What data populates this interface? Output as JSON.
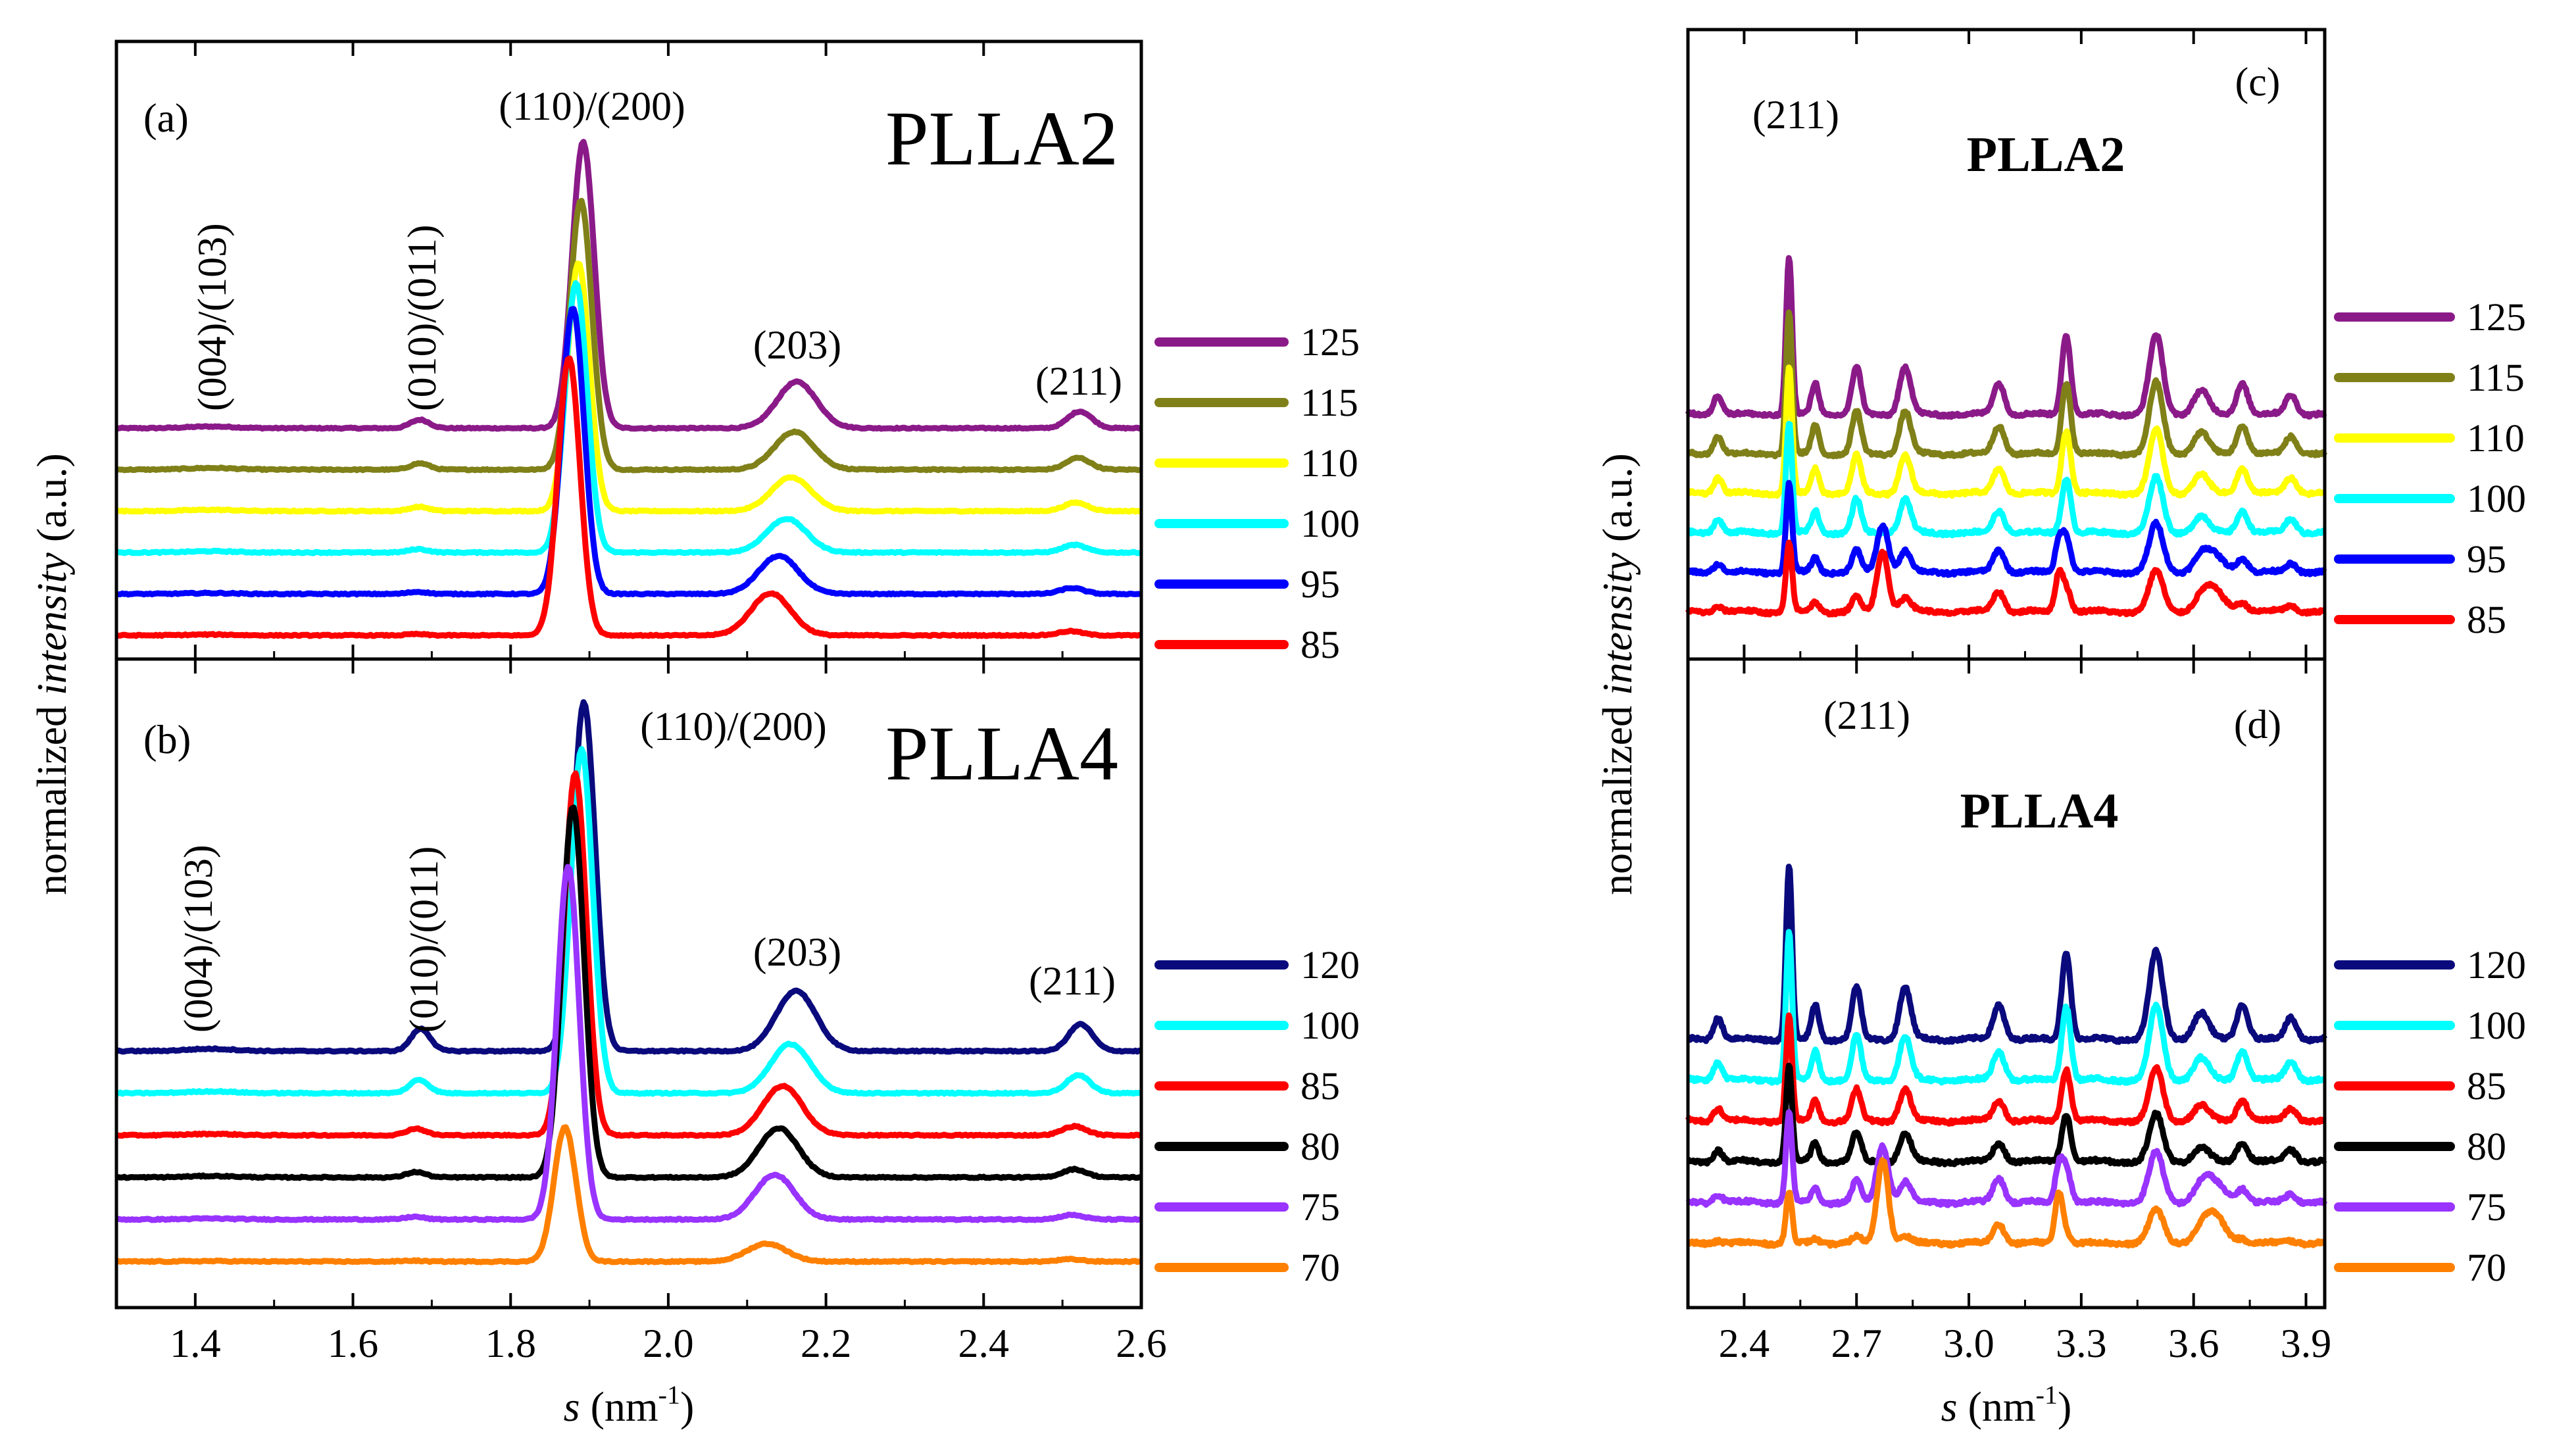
{
  "chart_data": [
    {
      "panel": "(a)",
      "type": "line",
      "sample": "PLLA2",
      "xlim": [
        1.3,
        2.6
      ],
      "x_ticks": [
        "1.4",
        "1.6",
        "1.8",
        "2.0",
        "2.2",
        "2.4",
        "2.6"
      ],
      "xlabel_var": "s",
      "xlabel_unit": "(nm",
      "xlabel_exp": "-1",
      "xlabel_close": ")",
      "ylabel_pre": "normalized ",
      "ylabel_it": "intensity",
      "ylabel_post": " (a.u.)",
      "peaks": [
        {
          "label": "(004)/(103)",
          "x": 1.42
        },
        {
          "label": "(010)/(011)",
          "x": 1.685
        },
        {
          "label": "(110)/(200)",
          "x": 1.89
        },
        {
          "label": "(203)",
          "x": 2.16
        },
        {
          "label": "(211)",
          "x": 2.52
        }
      ],
      "series": [
        {
          "name": "125",
          "color": "#8B1A89",
          "offset": 5,
          "peaks": [
            [
              1.42,
              0.04,
              0.03
            ],
            [
              1.685,
              0.2,
              0.012
            ],
            [
              1.892,
              6.8,
              0.014
            ],
            [
              2.163,
              1.1,
              0.025
            ],
            [
              2.522,
              0.4,
              0.015
            ]
          ]
        },
        {
          "name": "115",
          "color": "#808019",
          "offset": 4,
          "peaks": [
            [
              1.42,
              0.04,
              0.03
            ],
            [
              1.685,
              0.15,
              0.012
            ],
            [
              1.889,
              6.4,
              0.014
            ],
            [
              2.16,
              0.9,
              0.025
            ],
            [
              2.52,
              0.28,
              0.015
            ]
          ]
        },
        {
          "name": "110",
          "color": "#FFFF00",
          "offset": 3,
          "peaks": [
            [
              1.42,
              0.03,
              0.03
            ],
            [
              1.684,
              0.1,
              0.012
            ],
            [
              1.886,
              5.9,
              0.014
            ],
            [
              2.156,
              0.8,
              0.025
            ],
            [
              2.517,
              0.2,
              0.015
            ]
          ]
        },
        {
          "name": "100",
          "color": "#00FFFF",
          "offset": 2,
          "peaks": [
            [
              1.42,
              0.03,
              0.03
            ],
            [
              1.683,
              0.08,
              0.012
            ],
            [
              1.883,
              6.4,
              0.014
            ],
            [
              2.15,
              0.8,
              0.025
            ],
            [
              2.515,
              0.18,
              0.015
            ]
          ]
        },
        {
          "name": "95",
          "color": "#0000FF",
          "offset": 1,
          "peaks": [
            [
              1.42,
              0.02,
              0.03
            ],
            [
              1.682,
              0.05,
              0.012
            ],
            [
              1.879,
              6.8,
              0.014
            ],
            [
              2.14,
              0.9,
              0.025
            ],
            [
              2.512,
              0.14,
              0.015
            ]
          ]
        },
        {
          "name": "85",
          "color": "#FF0000",
          "offset": 0,
          "peaks": [
            [
              1.42,
              0.02,
              0.03
            ],
            [
              1.68,
              0.03,
              0.012
            ],
            [
              1.874,
              6.6,
              0.014
            ],
            [
              2.13,
              1.0,
              0.025
            ],
            [
              2.51,
              0.1,
              0.015
            ]
          ]
        }
      ]
    },
    {
      "panel": "(b)",
      "type": "line",
      "sample": "PLLA4",
      "xlim": [
        1.3,
        2.6
      ],
      "x_ticks": [
        "1.4",
        "1.6",
        "1.8",
        "2.0",
        "2.2",
        "2.4",
        "2.6"
      ],
      "peaks": [
        {
          "label": "(004)/(103)",
          "x": 1.42
        },
        {
          "label": "(010)/(011)",
          "x": 1.685
        },
        {
          "label": "(110)/(200)",
          "x": 1.89
        },
        {
          "label": "(203)",
          "x": 2.16
        },
        {
          "label": "(211)",
          "x": 2.52
        }
      ],
      "series": [
        {
          "name": "120",
          "color": "#0A0A7D",
          "offset": 5,
          "peaks": [
            [
              1.42,
              0.05,
              0.03
            ],
            [
              1.686,
              0.5,
              0.012
            ],
            [
              1.893,
              7.8,
              0.014
            ],
            [
              2.162,
              1.35,
              0.025
            ],
            [
              2.523,
              0.6,
              0.015
            ]
          ]
        },
        {
          "name": "100",
          "color": "#00FFFF",
          "offset": 4,
          "peaks": [
            [
              1.42,
              0.04,
              0.03
            ],
            [
              1.684,
              0.3,
              0.012
            ],
            [
              1.89,
              7.7,
              0.014
            ],
            [
              2.155,
              1.1,
              0.025
            ],
            [
              2.52,
              0.4,
              0.015
            ]
          ]
        },
        {
          "name": "85",
          "color": "#FF0000",
          "offset": 3,
          "peaks": [
            [
              1.42,
              0.03,
              0.03
            ],
            [
              1.68,
              0.15,
              0.012
            ],
            [
              1.882,
              8.1,
              0.014
            ],
            [
              2.145,
              1.1,
              0.025
            ],
            [
              2.515,
              0.2,
              0.015
            ]
          ]
        },
        {
          "name": "80",
          "color": "#000000",
          "offset": 2,
          "peaks": [
            [
              1.42,
              0.03,
              0.03
            ],
            [
              1.68,
              0.12,
              0.012
            ],
            [
              1.879,
              8.3,
              0.014
            ],
            [
              2.14,
              1.1,
              0.025
            ],
            [
              2.515,
              0.18,
              0.015
            ]
          ]
        },
        {
          "name": "75",
          "color": "#9933FF",
          "offset": 1,
          "peaks": [
            [
              1.42,
              0.02,
              0.03
            ],
            [
              1.678,
              0.06,
              0.012
            ],
            [
              1.873,
              7.9,
              0.014
            ],
            [
              2.135,
              1.0,
              0.025
            ],
            [
              2.512,
              0.1,
              0.015
            ]
          ]
        },
        {
          "name": "70",
          "color": "#FF8000",
          "offset": 0,
          "peaks": [
            [
              1.42,
              0.01,
              0.03
            ],
            [
              1.675,
              0.02,
              0.012
            ],
            [
              1.869,
              3.0,
              0.014
            ],
            [
              2.125,
              0.4,
              0.025
            ],
            [
              2.51,
              0.05,
              0.015
            ]
          ]
        }
      ]
    },
    {
      "panel": "(c)",
      "type": "line",
      "sample": "PLLA2",
      "peak_label": "(211)",
      "peak_x": 2.52,
      "xlim": [
        2.25,
        3.95
      ],
      "x_ticks": [
        "2.4",
        "2.7",
        "3.0",
        "3.3",
        "3.6",
        "3.9"
      ],
      "xlabel_var": "s",
      "xlabel_unit": "(nm",
      "xlabel_exp": "-1",
      "xlabel_close": ")",
      "ylabel_pre": "normalized ",
      "ylabel_it": "intensity",
      "ylabel_post": " (a.u.)",
      "series": [
        {
          "name": "125",
          "color": "#8B1A89",
          "offset": 5,
          "scale": 1.0,
          "wiggle": 0.25
        },
        {
          "name": "115",
          "color": "#808019",
          "offset": 4,
          "scale": 0.9,
          "wiggle": 0.25
        },
        {
          "name": "110",
          "color": "#FFFF00",
          "offset": 3,
          "scale": 0.8,
          "wiggle": 0.25
        },
        {
          "name": "100",
          "color": "#00FFFF",
          "offset": 2,
          "scale": 0.7,
          "wiggle": 0.25
        },
        {
          "name": "95",
          "color": "#0000FF",
          "offset": 1,
          "scale": 0.45,
          "wiggle": 0.25
        },
        {
          "name": "85",
          "color": "#FF0000",
          "offset": 0,
          "scale": 0.3,
          "wiggle": 0.3
        }
      ]
    },
    {
      "panel": "(d)",
      "type": "line",
      "sample": "PLLA4",
      "peak_label": "(211)",
      "peak_x": 2.52,
      "xlim": [
        2.25,
        3.95
      ],
      "x_ticks": [
        "2.4",
        "2.7",
        "3.0",
        "3.3",
        "3.6",
        "3.9"
      ],
      "series": [
        {
          "name": "120",
          "color": "#0A0A7D",
          "offset": 5,
          "scale": 1.0,
          "wiggle": 0.25
        },
        {
          "name": "100",
          "color": "#00FFFF",
          "offset": 4,
          "scale": 0.85,
          "wiggle": 0.25
        },
        {
          "name": "85",
          "color": "#FF0000",
          "offset": 3,
          "scale": 0.6,
          "wiggle": 0.25
        },
        {
          "name": "80",
          "color": "#000000",
          "offset": 2,
          "scale": 0.55,
          "wiggle": 0.25
        },
        {
          "name": "75",
          "color": "#9933FF",
          "offset": 1,
          "scale": 0.4,
          "wiggle": 0.25
        },
        {
          "name": "70",
          "color": "#FF8000",
          "offset": 0,
          "scale": 0.12,
          "wiggle": 0.2
        }
      ]
    }
  ]
}
